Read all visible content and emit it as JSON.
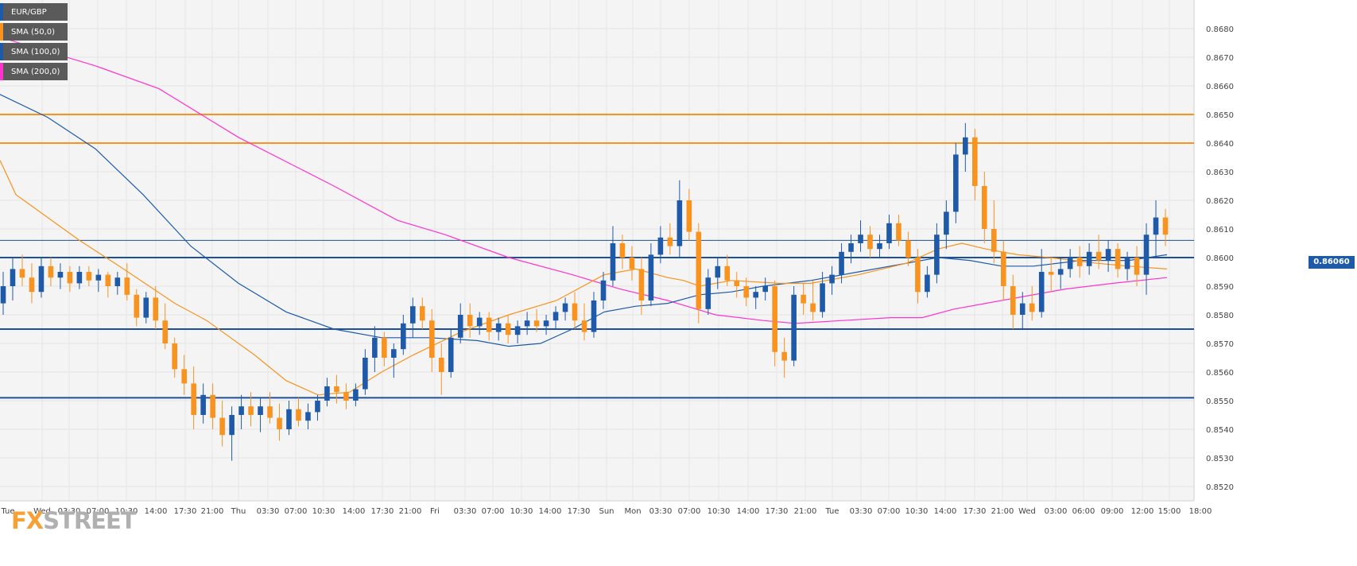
{
  "chart_data": {
    "type": "candlestick",
    "symbol": "EUR/GBP",
    "y_axis_ticks": [
      "0.8680",
      "0.8670",
      "0.8660",
      "0.8650",
      "0.8640",
      "0.8630",
      "0.8620",
      "0.8610",
      "0.8600",
      "0.8590",
      "0.8580",
      "0.8570",
      "0.8560",
      "0.8550",
      "0.8540",
      "0.8530",
      "0.8520"
    ],
    "x_axis_ticks": [
      "Tue",
      "Wed",
      "03:30",
      "07:00",
      "10:30",
      "14:00",
      "17:30",
      "21:00",
      "Thu",
      "03:30",
      "07:00",
      "10:30",
      "14:00",
      "17:30",
      "21:00",
      "Fri",
      "03:30",
      "07:00",
      "10:30",
      "14:00",
      "17:30",
      "Sun",
      "Mon",
      "03:30",
      "07:00",
      "10:30",
      "14:00",
      "17:30",
      "21:00",
      "Tue",
      "03:30",
      "07:00",
      "10:30",
      "14:00",
      "17:30",
      "21:00",
      "Wed",
      "03:00",
      "06:00",
      "09:00",
      "12:00",
      "15:00",
      "18:00"
    ],
    "ylim": [
      0.8515,
      0.869
    ],
    "current_price": "0.86060",
    "legend": [
      {
        "label": "EUR/GBP",
        "color": "#1e5aa8"
      },
      {
        "label": "SMA (50,0)",
        "color": "#f7931e"
      },
      {
        "label": "SMA (100,0)",
        "color": "#1e5aa8"
      },
      {
        "label": "SMA (200,0)",
        "color": "#ff33cc"
      }
    ],
    "resistance_levels": [
      0.865,
      0.864
    ],
    "support_levels": [
      0.86,
      0.8575,
      0.8551
    ],
    "current_price_value": 0.8606,
    "up_color": "#1e5aa8",
    "down_color": "#f7931e",
    "sma50_color": "#f7931e",
    "sma100_color": "#1e5aa8",
    "sma200_color": "#ff33cc",
    "candles": [
      [
        0.8584,
        0.8595,
        0.858,
        0.859
      ],
      [
        0.859,
        0.86,
        0.8585,
        0.8596
      ],
      [
        0.8596,
        0.8601,
        0.859,
        0.8593
      ],
      [
        0.8593,
        0.8598,
        0.8584,
        0.8588
      ],
      [
        0.8588,
        0.86,
        0.8586,
        0.8597
      ],
      [
        0.8597,
        0.86,
        0.859,
        0.8593
      ],
      [
        0.8593,
        0.8598,
        0.8589,
        0.8595
      ],
      [
        0.8595,
        0.8597,
        0.8588,
        0.8591
      ],
      [
        0.8591,
        0.8597,
        0.8589,
        0.8595
      ],
      [
        0.8595,
        0.8597,
        0.859,
        0.8592
      ],
      [
        0.8592,
        0.8596,
        0.8588,
        0.8594
      ],
      [
        0.8594,
        0.8595,
        0.8586,
        0.859
      ],
      [
        0.859,
        0.8595,
        0.8587,
        0.8593
      ],
      [
        0.8593,
        0.8598,
        0.8585,
        0.8587
      ],
      [
        0.8587,
        0.8589,
        0.8576,
        0.8579
      ],
      [
        0.8579,
        0.8588,
        0.8577,
        0.8586
      ],
      [
        0.8586,
        0.859,
        0.8575,
        0.8578
      ],
      [
        0.8578,
        0.8584,
        0.8568,
        0.857
      ],
      [
        0.857,
        0.8572,
        0.8558,
        0.8561
      ],
      [
        0.8561,
        0.8566,
        0.8552,
        0.8556
      ],
      [
        0.8556,
        0.8562,
        0.854,
        0.8545
      ],
      [
        0.8545,
        0.8556,
        0.8542,
        0.8552
      ],
      [
        0.8552,
        0.8556,
        0.854,
        0.8544
      ],
      [
        0.8544,
        0.855,
        0.8534,
        0.8538
      ],
      [
        0.8538,
        0.8548,
        0.8529,
        0.8545
      ],
      [
        0.8545,
        0.8552,
        0.854,
        0.8548
      ],
      [
        0.8548,
        0.8553,
        0.8541,
        0.8545
      ],
      [
        0.8545,
        0.8551,
        0.8539,
        0.8548
      ],
      [
        0.8548,
        0.8553,
        0.8542,
        0.8544
      ],
      [
        0.8544,
        0.8549,
        0.8536,
        0.854
      ],
      [
        0.854,
        0.855,
        0.8538,
        0.8547
      ],
      [
        0.8547,
        0.8551,
        0.8541,
        0.8543
      ],
      [
        0.8543,
        0.8549,
        0.854,
        0.8546
      ],
      [
        0.8546,
        0.8552,
        0.8543,
        0.855
      ],
      [
        0.855,
        0.8558,
        0.8548,
        0.8555
      ],
      [
        0.8555,
        0.8559,
        0.8549,
        0.8553
      ],
      [
        0.8553,
        0.8556,
        0.8547,
        0.855
      ],
      [
        0.855,
        0.8556,
        0.8548,
        0.8554
      ],
      [
        0.8554,
        0.8568,
        0.8552,
        0.8565
      ],
      [
        0.8565,
        0.8576,
        0.856,
        0.8572
      ],
      [
        0.8572,
        0.8574,
        0.8562,
        0.8565
      ],
      [
        0.8565,
        0.857,
        0.8558,
        0.8568
      ],
      [
        0.8568,
        0.858,
        0.8566,
        0.8577
      ],
      [
        0.8577,
        0.8586,
        0.8572,
        0.8583
      ],
      [
        0.8583,
        0.8586,
        0.8575,
        0.8578
      ],
      [
        0.8578,
        0.8582,
        0.856,
        0.8565
      ],
      [
        0.8565,
        0.857,
        0.8552,
        0.856
      ],
      [
        0.856,
        0.8575,
        0.8558,
        0.8572
      ],
      [
        0.8572,
        0.8584,
        0.857,
        0.858
      ],
      [
        0.858,
        0.8584,
        0.8572,
        0.8576
      ],
      [
        0.8576,
        0.8581,
        0.8573,
        0.8579
      ],
      [
        0.8579,
        0.8581,
        0.8571,
        0.8574
      ],
      [
        0.8574,
        0.8579,
        0.8571,
        0.8577
      ],
      [
        0.8577,
        0.858,
        0.857,
        0.8573
      ],
      [
        0.8573,
        0.8578,
        0.857,
        0.8576
      ],
      [
        0.8576,
        0.8581,
        0.8573,
        0.8578
      ],
      [
        0.8578,
        0.8582,
        0.8574,
        0.8576
      ],
      [
        0.8576,
        0.858,
        0.8573,
        0.8578
      ],
      [
        0.8578,
        0.8583,
        0.8575,
        0.8581
      ],
      [
        0.8581,
        0.8586,
        0.8578,
        0.8584
      ],
      [
        0.8584,
        0.8588,
        0.8575,
        0.8578
      ],
      [
        0.8578,
        0.8584,
        0.8571,
        0.8574
      ],
      [
        0.8574,
        0.8588,
        0.8572,
        0.8585
      ],
      [
        0.8585,
        0.8595,
        0.8582,
        0.8592
      ],
      [
        0.8592,
        0.8611,
        0.859,
        0.8605
      ],
      [
        0.8605,
        0.8608,
        0.8596,
        0.86
      ],
      [
        0.86,
        0.8604,
        0.8592,
        0.8596
      ],
      [
        0.8596,
        0.86,
        0.858,
        0.8585
      ],
      [
        0.8585,
        0.8605,
        0.8583,
        0.8601
      ],
      [
        0.8601,
        0.8611,
        0.8598,
        0.8607
      ],
      [
        0.8607,
        0.8612,
        0.8601,
        0.8604
      ],
      [
        0.8604,
        0.8627,
        0.86,
        0.862
      ],
      [
        0.862,
        0.8624,
        0.8606,
        0.8609
      ],
      [
        0.8609,
        0.8612,
        0.8577,
        0.8582
      ],
      [
        0.8582,
        0.8596,
        0.858,
        0.8593
      ],
      [
        0.8593,
        0.86,
        0.8589,
        0.8597
      ],
      [
        0.8597,
        0.8601,
        0.859,
        0.8592
      ],
      [
        0.8592,
        0.8595,
        0.8586,
        0.859
      ],
      [
        0.859,
        0.8593,
        0.8583,
        0.8586
      ],
      [
        0.8586,
        0.859,
        0.8582,
        0.8588
      ],
      [
        0.8588,
        0.8593,
        0.8585,
        0.859
      ],
      [
        0.859,
        0.8592,
        0.8562,
        0.8567
      ],
      [
        0.8567,
        0.8572,
        0.8558,
        0.8564
      ],
      [
        0.8564,
        0.859,
        0.8562,
        0.8587
      ],
      [
        0.8587,
        0.8591,
        0.858,
        0.8584
      ],
      [
        0.8584,
        0.8592,
        0.8578,
        0.8581
      ],
      [
        0.8581,
        0.8595,
        0.8579,
        0.8591
      ],
      [
        0.8591,
        0.8597,
        0.8587,
        0.8594
      ],
      [
        0.8594,
        0.8605,
        0.8591,
        0.8602
      ],
      [
        0.8602,
        0.8608,
        0.8598,
        0.8605
      ],
      [
        0.8605,
        0.8613,
        0.8602,
        0.8608
      ],
      [
        0.8608,
        0.8611,
        0.86,
        0.8603
      ],
      [
        0.8603,
        0.8608,
        0.86,
        0.8605
      ],
      [
        0.8605,
        0.8615,
        0.8603,
        0.8612
      ],
      [
        0.8612,
        0.8615,
        0.8604,
        0.8606
      ],
      [
        0.8606,
        0.8609,
        0.8597,
        0.86
      ],
      [
        0.86,
        0.8603,
        0.8584,
        0.8588
      ],
      [
        0.8588,
        0.8597,
        0.8586,
        0.8594
      ],
      [
        0.8594,
        0.8612,
        0.8591,
        0.8608
      ],
      [
        0.8608,
        0.862,
        0.8603,
        0.8616
      ],
      [
        0.8616,
        0.864,
        0.8612,
        0.8636
      ],
      [
        0.8636,
        0.8647,
        0.863,
        0.8642
      ],
      [
        0.8642,
        0.8645,
        0.862,
        0.8625
      ],
      [
        0.8625,
        0.863,
        0.8605,
        0.861
      ],
      [
        0.861,
        0.862,
        0.8598,
        0.8602
      ],
      [
        0.8602,
        0.8606,
        0.8585,
        0.859
      ],
      [
        0.859,
        0.8594,
        0.8575,
        0.858
      ],
      [
        0.858,
        0.8588,
        0.8575,
        0.8584
      ],
      [
        0.8584,
        0.859,
        0.8578,
        0.8581
      ],
      [
        0.8581,
        0.8603,
        0.8579,
        0.8595
      ],
      [
        0.8595,
        0.86,
        0.8588,
        0.8594
      ],
      [
        0.8594,
        0.86,
        0.8589,
        0.8596
      ],
      [
        0.8596,
        0.8603,
        0.8593,
        0.86
      ],
      [
        0.86,
        0.8604,
        0.8593,
        0.8597
      ],
      [
        0.8597,
        0.8605,
        0.8594,
        0.8602
      ],
      [
        0.8602,
        0.8608,
        0.8596,
        0.8599
      ],
      [
        0.8599,
        0.8606,
        0.8595,
        0.8603
      ],
      [
        0.8603,
        0.8605,
        0.8593,
        0.8596
      ],
      [
        0.8596,
        0.8602,
        0.8592,
        0.86
      ],
      [
        0.86,
        0.8604,
        0.859,
        0.8594
      ],
      [
        0.8594,
        0.8612,
        0.8587,
        0.8608
      ],
      [
        0.8608,
        0.862,
        0.86,
        0.8614
      ],
      [
        0.8614,
        0.8617,
        0.8604,
        0.8608
      ]
    ],
    "sma50": [
      [
        0,
        0.8634
      ],
      [
        20,
        0.8622
      ],
      [
        60,
        0.8614
      ],
      [
        100,
        0.8606
      ],
      [
        150,
        0.8597
      ],
      [
        220,
        0.8584
      ],
      [
        260,
        0.8578
      ],
      [
        320,
        0.8566
      ],
      [
        360,
        0.8557
      ],
      [
        400,
        0.8552
      ],
      [
        440,
        0.8553
      ],
      [
        480,
        0.856
      ],
      [
        520,
        0.8566
      ],
      [
        580,
        0.8574
      ],
      [
        640,
        0.858
      ],
      [
        700,
        0.8585
      ],
      [
        760,
        0.8594
      ],
      [
        800,
        0.8596
      ],
      [
        840,
        0.8593
      ],
      [
        860,
        0.8592
      ],
      [
        880,
        0.859
      ],
      [
        920,
        0.8592
      ],
      [
        980,
        0.8591
      ],
      [
        1020,
        0.8591
      ],
      [
        1080,
        0.8594
      ],
      [
        1140,
        0.8598
      ],
      [
        1180,
        0.8603
      ],
      [
        1210,
        0.8605
      ],
      [
        1240,
        0.8603
      ],
      [
        1280,
        0.8601
      ],
      [
        1320,
        0.86
      ],
      [
        1380,
        0.8598
      ],
      [
        1420,
        0.8597
      ],
      [
        1468,
        0.8596
      ]
    ],
    "sma100": [
      [
        0,
        0.8657
      ],
      [
        60,
        0.8649
      ],
      [
        120,
        0.8638
      ],
      [
        180,
        0.8622
      ],
      [
        240,
        0.8604
      ],
      [
        300,
        0.8591
      ],
      [
        360,
        0.8581
      ],
      [
        420,
        0.8575
      ],
      [
        480,
        0.8572
      ],
      [
        540,
        0.8572
      ],
      [
        600,
        0.8571
      ],
      [
        640,
        0.8569
      ],
      [
        680,
        0.857
      ],
      [
        720,
        0.8575
      ],
      [
        760,
        0.8581
      ],
      [
        800,
        0.8583
      ],
      [
        840,
        0.8584
      ],
      [
        880,
        0.8587
      ],
      [
        920,
        0.8588
      ],
      [
        960,
        0.859
      ],
      [
        1020,
        0.8592
      ],
      [
        1080,
        0.8595
      ],
      [
        1140,
        0.8598
      ],
      [
        1180,
        0.86
      ],
      [
        1220,
        0.8599
      ],
      [
        1260,
        0.8597
      ],
      [
        1300,
        0.8597
      ],
      [
        1360,
        0.8599
      ],
      [
        1420,
        0.8599
      ],
      [
        1468,
        0.8601
      ]
    ],
    "sma200": [
      [
        0,
        0.8677
      ],
      [
        60,
        0.8672
      ],
      [
        120,
        0.8667
      ],
      [
        200,
        0.8659
      ],
      [
        300,
        0.8642
      ],
      [
        420,
        0.8625
      ],
      [
        500,
        0.8613
      ],
      [
        560,
        0.8608
      ],
      [
        640,
        0.86
      ],
      [
        720,
        0.8594
      ],
      [
        780,
        0.8589
      ],
      [
        840,
        0.8585
      ],
      [
        900,
        0.858
      ],
      [
        960,
        0.8578
      ],
      [
        1000,
        0.8577
      ],
      [
        1060,
        0.8578
      ],
      [
        1120,
        0.8579
      ],
      [
        1160,
        0.8579
      ],
      [
        1200,
        0.8582
      ],
      [
        1240,
        0.8584
      ],
      [
        1280,
        0.8586
      ],
      [
        1340,
        0.8589
      ],
      [
        1400,
        0.8591
      ],
      [
        1468,
        0.8593
      ]
    ]
  }
}
